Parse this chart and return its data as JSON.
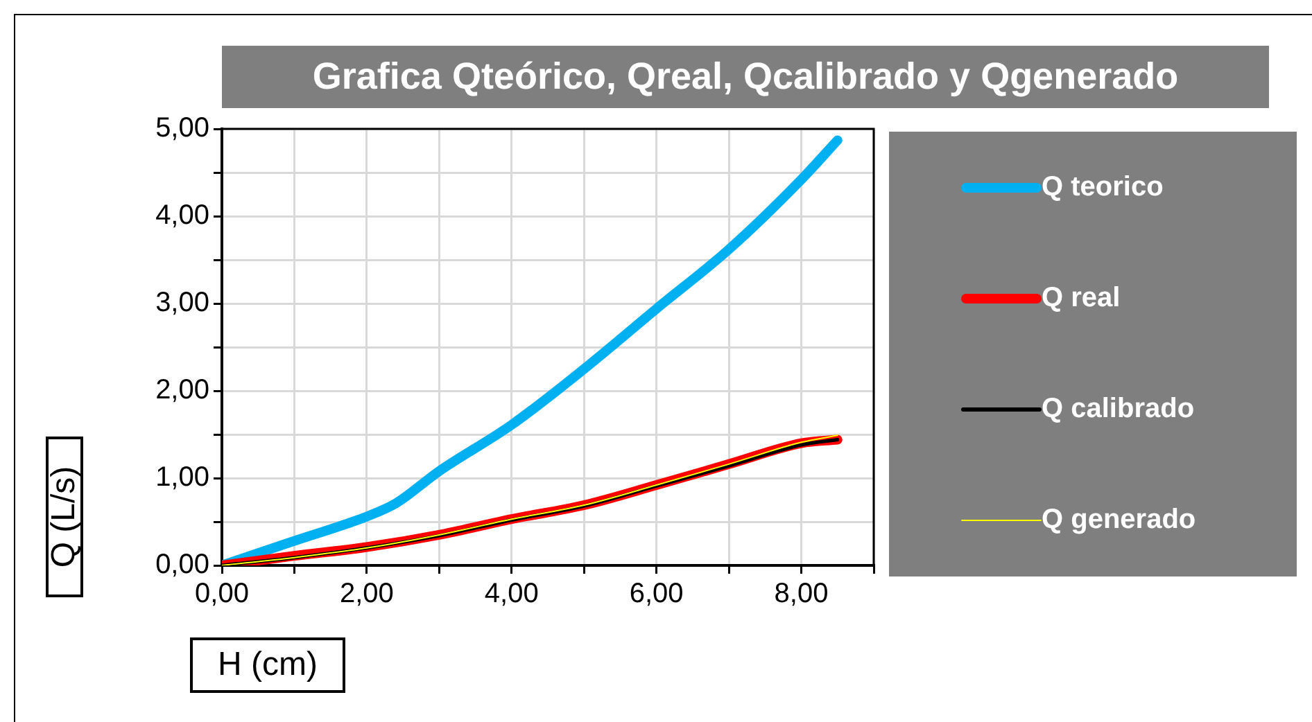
{
  "chart_data": {
    "type": "line",
    "title": "Grafica Qteórico, Qreal, Qcalibrado y Qgenerado",
    "xlabel": "H (cm)",
    "ylabel": "Q (L/s)",
    "xlim": [
      0,
      9
    ],
    "xticks": [
      {
        "value": 0,
        "label": "0,00"
      },
      {
        "value": 1,
        "label": null
      },
      {
        "value": 2,
        "label": "2,00"
      },
      {
        "value": 3,
        "label": null
      },
      {
        "value": 4,
        "label": "4,00"
      },
      {
        "value": 5,
        "label": null
      },
      {
        "value": 6,
        "label": "6,00"
      },
      {
        "value": 7,
        "label": null
      },
      {
        "value": 8,
        "label": "8,00"
      },
      {
        "value": 9,
        "label": null
      }
    ],
    "ylim": [
      0,
      5
    ],
    "yticks": [
      {
        "value": 0,
        "label": "0,00"
      },
      {
        "value": 0.5,
        "label": null
      },
      {
        "value": 1,
        "label": "1,00"
      },
      {
        "value": 1.5,
        "label": null
      },
      {
        "value": 2,
        "label": "2,00"
      },
      {
        "value": 2.5,
        "label": null
      },
      {
        "value": 3,
        "label": "3,00"
      },
      {
        "value": 3.5,
        "label": null
      },
      {
        "value": 4,
        "label": "4,00"
      },
      {
        "value": 4.5,
        "label": null
      },
      {
        "value": 5,
        "label": "5,00"
      }
    ],
    "grid": true,
    "legend": "right",
    "marker": "none",
    "line_style": "solid",
    "series": [
      {
        "name": "Q teorico",
        "color": "#00b0f0",
        "x": [
          0,
          1,
          2,
          2.4,
          3,
          4,
          5,
          6,
          7,
          8,
          8.5
        ],
        "values": [
          0,
          0.28,
          0.56,
          0.71,
          1.08,
          1.61,
          2.25,
          2.94,
          3.62,
          4.42,
          4.87
        ]
      },
      {
        "name": "Q real",
        "color": "#ff0000",
        "x": [
          0,
          1,
          2,
          3,
          4,
          5,
          6,
          7,
          8,
          8.5
        ],
        "values": [
          0,
          0.11,
          0.21,
          0.35,
          0.53,
          0.69,
          0.92,
          1.16,
          1.4,
          1.44
        ]
      },
      {
        "name": "Q calibrado",
        "color": "#000000",
        "x": [
          0,
          1,
          2,
          3,
          4,
          5,
          6,
          7,
          8,
          8.5
        ],
        "values": [
          0,
          0.09,
          0.2,
          0.34,
          0.52,
          0.68,
          0.91,
          1.14,
          1.38,
          1.44
        ]
      },
      {
        "name": "Q generado",
        "color": "#ffff00",
        "x": [
          0,
          1,
          2,
          3,
          4,
          5,
          6,
          7,
          8,
          8.5
        ],
        "values": [
          0,
          0.09,
          0.2,
          0.35,
          0.53,
          0.69,
          0.92,
          1.16,
          1.41,
          1.49
        ]
      }
    ]
  }
}
